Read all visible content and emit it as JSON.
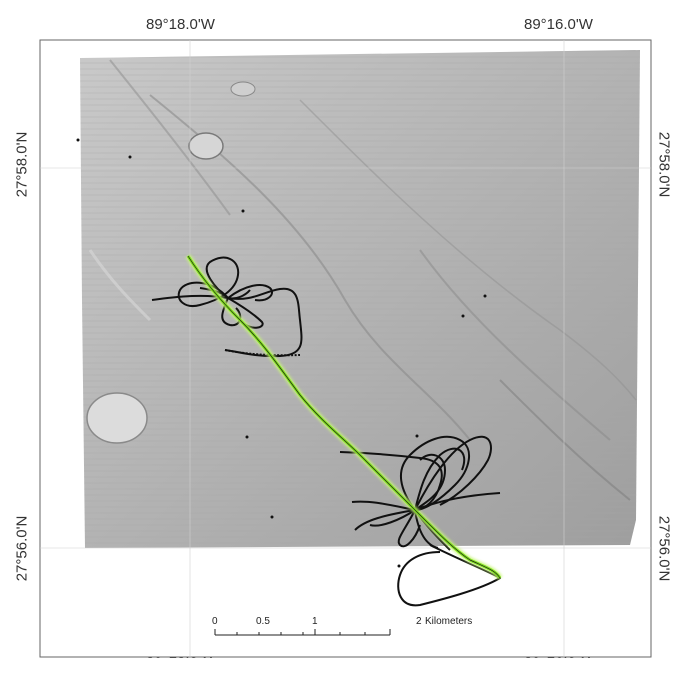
{
  "map": {
    "lon_labels": {
      "left": "89°18.0'W",
      "right": "89°16.0'W"
    },
    "lat_labels": {
      "upper": "27°58.0'N",
      "lower": "27°56.0'N"
    },
    "scale_bar": {
      "ticks": [
        "0",
        "0.5",
        "1",
        "2"
      ],
      "unit": "Kilometers"
    },
    "colors": {
      "bathymetry": "#b4b4b4",
      "track_primary": "#7ee01a",
      "track_secondary": "#111111",
      "frame": "#555555"
    }
  }
}
